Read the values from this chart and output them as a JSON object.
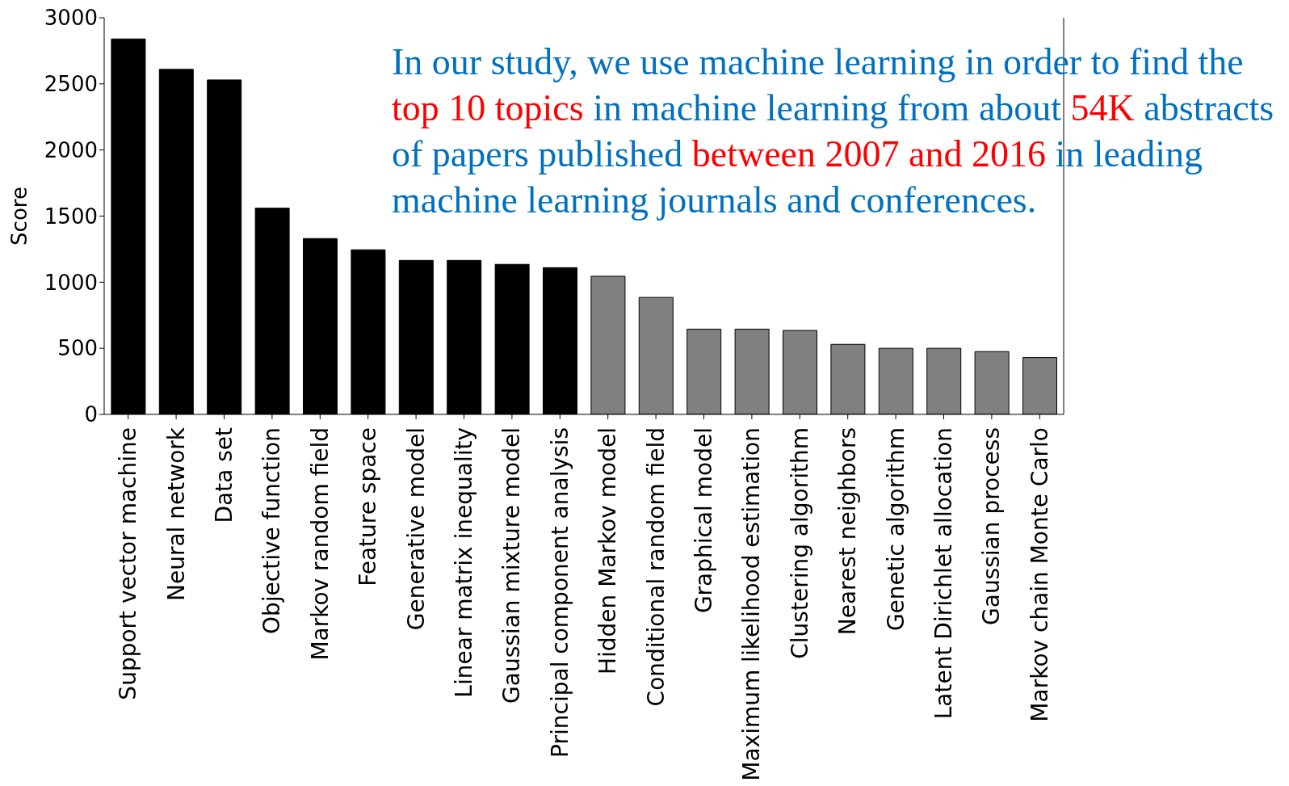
{
  "chart_data": {
    "type": "bar",
    "ylabel": "Score",
    "categories": [
      "Support vector machine",
      "Neural network",
      "Data set",
      "Objective function",
      "Markov random field",
      "Feature space",
      "Generative model",
      "Linear matrix inequality",
      "Gaussian mixture model",
      "Principal component analysis",
      "Hidden Markov model",
      "Conditional random field",
      "Graphical model",
      "Maximum likelihood estimation",
      "Clustering algorithm",
      "Nearest neighbors",
      "Genetic algorithm",
      "Latent Dirichlet allocation",
      "Gaussian process",
      "Markov chain Monte Carlo"
    ],
    "values": [
      2840,
      2610,
      2530,
      1560,
      1330,
      1245,
      1165,
      1165,
      1135,
      1110,
      1045,
      885,
      645,
      645,
      635,
      530,
      500,
      500,
      475,
      430
    ],
    "colors": [
      "#000000",
      "#000000",
      "#000000",
      "#000000",
      "#000000",
      "#000000",
      "#000000",
      "#000000",
      "#000000",
      "#000000",
      "#808080",
      "#808080",
      "#808080",
      "#808080",
      "#808080",
      "#808080",
      "#808080",
      "#808080",
      "#808080",
      "#808080"
    ],
    "ylim": [
      0,
      3000
    ],
    "yticks": [
      0,
      500,
      1000,
      1500,
      2000,
      2500,
      3000
    ],
    "grid": false,
    "legend": false,
    "annotations": [
      "In our study, we use machine learning in order to find the ",
      "top 10 topics",
      " in machine learning from about ",
      "54K",
      " abstracts of papers published ",
      "between 2007 and 2016",
      " in leading machine learning journals and conferences."
    ]
  }
}
